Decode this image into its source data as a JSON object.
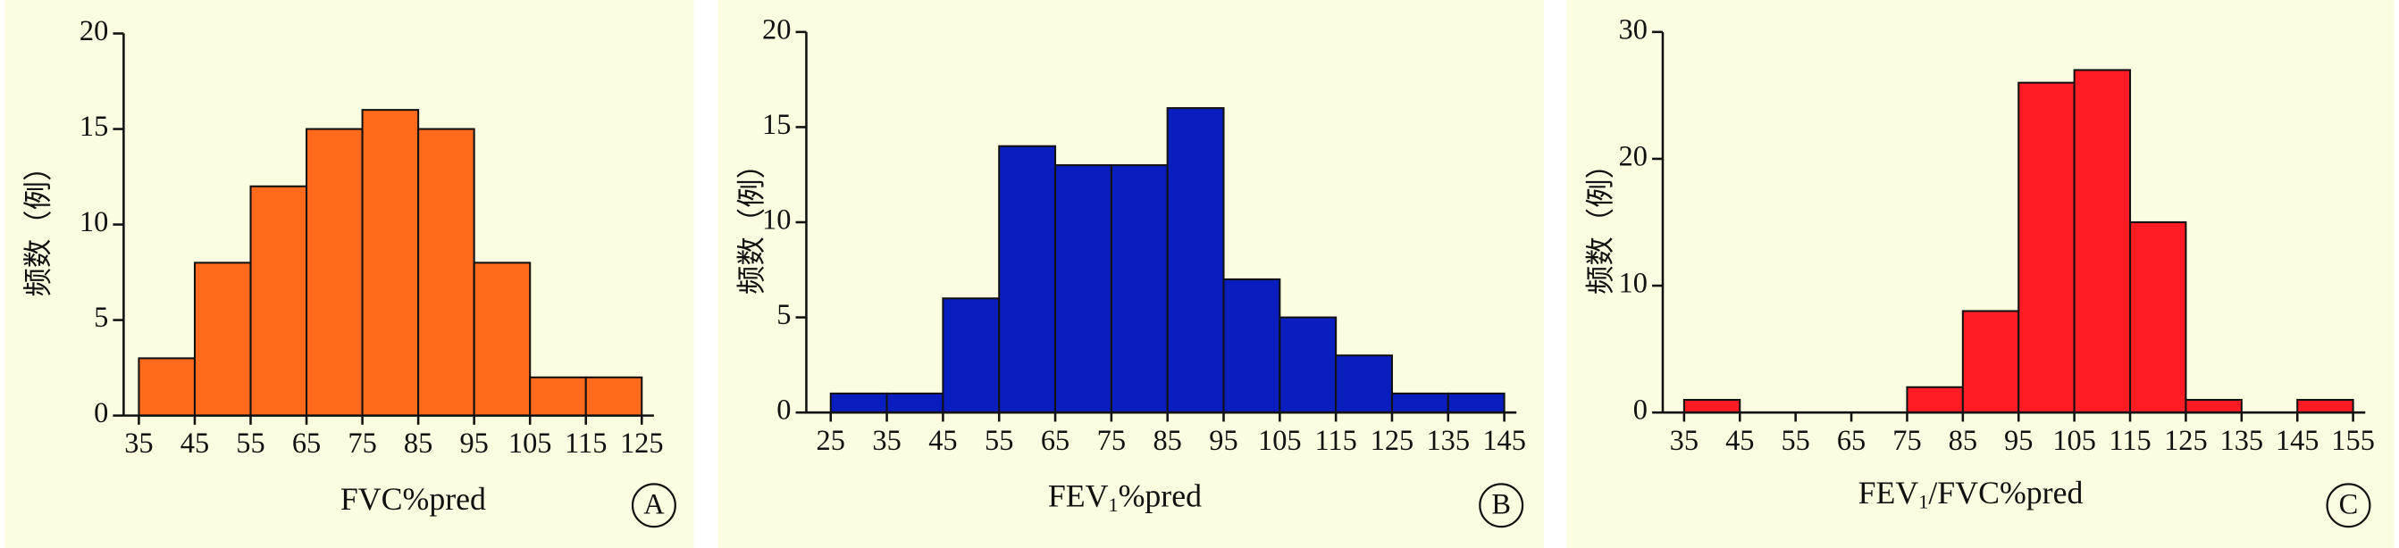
{
  "chart_data": [
    {
      "type": "histogram",
      "panel_label": "A",
      "ylabel": "频数（例）",
      "xlabel": [
        "FVC%pred"
      ],
      "color": "#ff6a1c",
      "bins": [
        35,
        45,
        55,
        65,
        75,
        85,
        95,
        105,
        115,
        125
      ],
      "values": [
        3,
        8,
        12,
        15,
        16,
        15,
        8,
        2,
        2
      ],
      "xlim": [
        35,
        125
      ],
      "ylim": [
        0,
        20
      ],
      "yticks": [
        0,
        5,
        10,
        15,
        20
      ]
    },
    {
      "type": "histogram",
      "panel_label": "B",
      "ylabel": "频数（例）",
      "xlabel": [
        "FEV",
        "1",
        "%pred"
      ],
      "color": "#0a1ec0",
      "bins": [
        25,
        35,
        45,
        55,
        65,
        75,
        85,
        95,
        105,
        115,
        125,
        135,
        145
      ],
      "values": [
        1,
        1,
        6,
        14,
        13,
        13,
        16,
        7,
        5,
        3,
        1,
        1
      ],
      "xlim": [
        25,
        145
      ],
      "ylim": [
        0,
        20
      ],
      "yticks": [
        0,
        5,
        10,
        15,
        20
      ]
    },
    {
      "type": "histogram",
      "panel_label": "C",
      "ylabel": "频数（例）",
      "xlabel": [
        "FEV",
        "1",
        "/FVC%pred"
      ],
      "color": "#ff1c24",
      "bins": [
        35,
        45,
        55,
        65,
        75,
        85,
        95,
        105,
        115,
        125,
        135,
        145,
        155
      ],
      "values": [
        1,
        0,
        0,
        0,
        2,
        8,
        26,
        27,
        15,
        1,
        0,
        1
      ],
      "xlim": [
        35,
        155
      ],
      "ylim": [
        0,
        30
      ],
      "yticks": [
        0,
        10,
        20,
        30
      ]
    }
  ]
}
